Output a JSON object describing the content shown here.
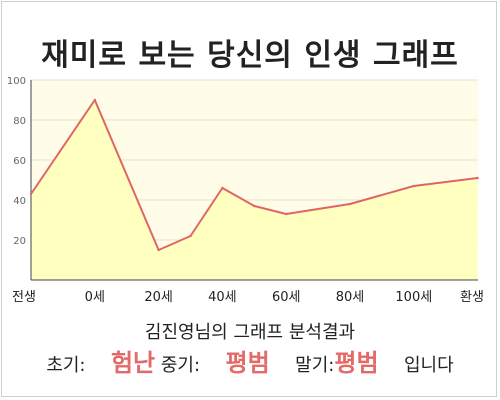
{
  "page": {
    "title": "재미로 보는 당신의 인생 그래프"
  },
  "chart_data": {
    "type": "area",
    "x_labels": [
      "전생",
      "0세",
      "20세",
      "40세",
      "60세",
      "80세",
      "100세",
      "환생"
    ],
    "points": [
      {
        "x": 0,
        "y": 43
      },
      {
        "x": 1,
        "y": 90
      },
      {
        "x": 2,
        "y": 15
      },
      {
        "x": 2.5,
        "y": 22
      },
      {
        "x": 3,
        "y": 46
      },
      {
        "x": 3.5,
        "y": 37
      },
      {
        "x": 4,
        "y": 33
      },
      {
        "x": 5,
        "y": 38
      },
      {
        "x": 6,
        "y": 47
      },
      {
        "x": 7,
        "y": 51
      }
    ],
    "y_ticks": [
      20,
      40,
      60,
      80,
      100
    ],
    "ylim": [
      0,
      100
    ],
    "line_color": "#e06666",
    "fill_color": "#ffffc0",
    "plot_background": "#fffde8",
    "grid": true
  },
  "result": {
    "title": "김진영님의 그래프 분석결과",
    "early_label": "초기:",
    "early_value": "험난",
    "mid_label": "중기:",
    "mid_value": "평범",
    "late_label": "말기:",
    "late_value": "평범",
    "ending": "입니다",
    "highlight_color": "#e46a6a"
  }
}
